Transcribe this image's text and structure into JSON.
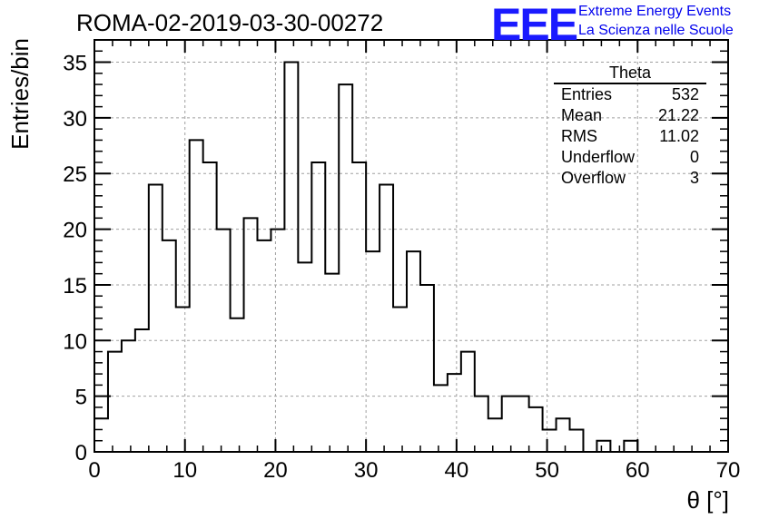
{
  "header": {
    "run_title": "ROMA-02-2019-03-30-00272",
    "logo_text": "EEE",
    "logo_line1": "Extreme Energy Events",
    "logo_line2": "La Scienza nelle Scuole"
  },
  "stats": {
    "title": "Theta",
    "rows": [
      {
        "label": "Entries",
        "value": "532"
      },
      {
        "label": "Mean",
        "value": "21.22"
      },
      {
        "label": "RMS",
        "value": "11.02"
      },
      {
        "label": "Underflow",
        "value": "0"
      },
      {
        "label": "Overflow",
        "value": "3"
      }
    ]
  },
  "colors": {
    "line": "#000000",
    "grid": "#a0a0a0",
    "logo": "#1a1aff",
    "logo_text": "#0000ee"
  },
  "chart_data": {
    "type": "bar",
    "style": "step-histogram",
    "xlabel": "θ [°]",
    "ylabel": "Entries/bin",
    "xlim": [
      0,
      70
    ],
    "ylim": [
      0,
      37
    ],
    "grid": true,
    "x_ticks": [
      0,
      10,
      20,
      30,
      40,
      50,
      60,
      70
    ],
    "y_ticks": [
      0,
      5,
      10,
      15,
      20,
      25,
      30,
      35
    ],
    "bin_width": 1.5,
    "bin_edges_start": 0,
    "values": [
      3,
      9,
      10,
      11,
      24,
      19,
      13,
      28,
      26,
      20,
      12,
      21,
      19,
      20,
      35,
      17,
      26,
      16,
      33,
      26,
      18,
      24,
      13,
      18,
      15,
      6,
      7,
      9,
      5,
      3,
      5,
      5,
      4,
      2,
      3,
      2,
      0,
      1,
      0,
      1,
      0,
      0,
      0,
      0,
      0,
      0
    ]
  }
}
